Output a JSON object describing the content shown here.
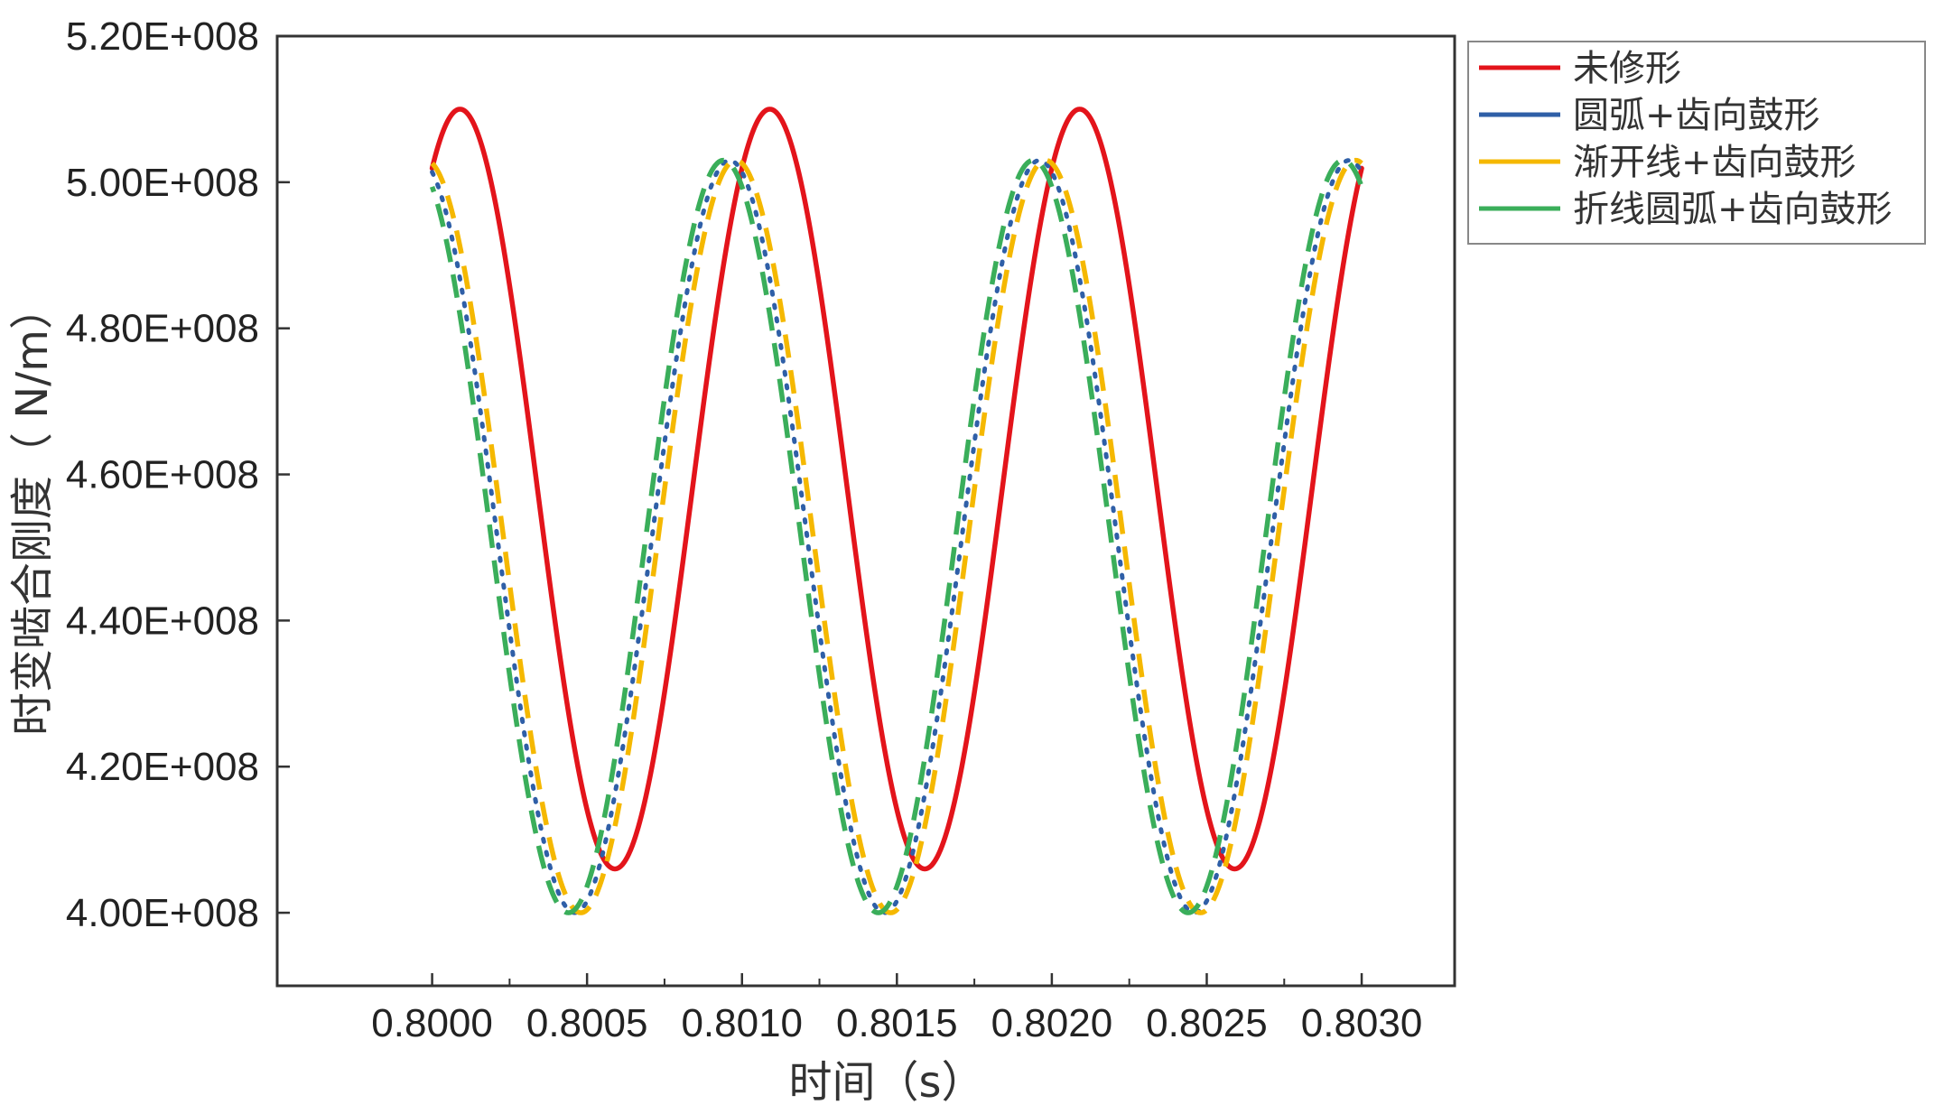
{
  "chart_data": {
    "type": "line",
    "xlabel": "时间（s）",
    "ylabel": "时变啮合刚度（ N/m）",
    "xlim": [
      0.7995,
      0.8033
    ],
    "ylim": [
      390000000.0,
      520000000.0
    ],
    "x_ticks": [
      0.8,
      0.8005,
      0.801,
      0.8015,
      0.802,
      0.8025,
      0.803
    ],
    "x_tick_labels": [
      "0.8000",
      "0.8005",
      "0.8010",
      "0.8015",
      "0.8020",
      "0.8025",
      "0.8030"
    ],
    "y_ticks": [
      400000000.0,
      420000000.0,
      440000000.0,
      460000000.0,
      480000000.0,
      500000000.0,
      520000000.0
    ],
    "y_tick_labels": [
      "4.00E+008",
      "4.20E+008",
      "4.40E+008",
      "4.60E+008",
      "4.80E+008",
      "5.00E+008",
      "5.20E+008"
    ],
    "grid": false,
    "legend_position": "right",
    "x_range": [
      0.8,
      0.803
    ],
    "series": [
      {
        "name": "未修形",
        "color": "#e3141b",
        "dash": "solid",
        "offset": 458000000.0,
        "amplitude": 52000000.0,
        "period": 0.001,
        "peak_x": 0.80009
      },
      {
        "name": "圆弧+齿向鼓形",
        "color": "#2f5fa7",
        "dash": "dotted",
        "offset": 451500000.0,
        "amplitude": 51500000.0,
        "period": 0.001,
        "peak_x": 0.79996
      },
      {
        "name": "渐开线+齿向鼓形",
        "color": "#f5b800",
        "dash": "dashed",
        "offset": 451500000.0,
        "amplitude": 51500000.0,
        "period": 0.001,
        "peak_x": 0.79998
      },
      {
        "name": "折线圆弧+齿向鼓形",
        "color": "#3aae5a",
        "dash": "dashed",
        "offset": 451500000.0,
        "amplitude": 51500000.0,
        "period": 0.001,
        "peak_x": 0.79994
      }
    ]
  }
}
